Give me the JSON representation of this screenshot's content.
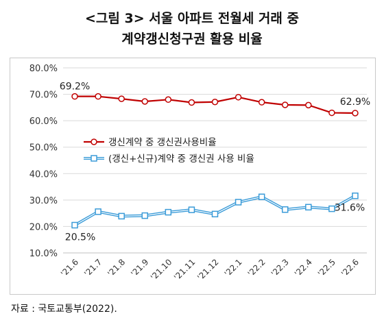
{
  "title": {
    "line1": "<그림 3> 서울 아파트 전월세 거래 중",
    "line2": "계약갱신청구권 활용 비율"
  },
  "source": "자료 : 국토교통부(2022).",
  "chart_data": {
    "type": "line",
    "categories": [
      "'21.6",
      "'21.7",
      "'21.8",
      "'21.9",
      "'21.10",
      "'21.11",
      "'21.12",
      "'22.1",
      "'22.2",
      "'22.3",
      "'22.4",
      "'22.5",
      "'22.6"
    ],
    "ylim": [
      10,
      80
    ],
    "yticks": [
      "10.0%",
      "20.0%",
      "30.0%",
      "40.0%",
      "50.0%",
      "60.0%",
      "70.0%",
      "80.0%"
    ],
    "grid": true,
    "legend_position": "middle-left",
    "series": [
      {
        "name": "갱신계약 중 갱신권사용비율",
        "color": "#c00000",
        "marker": "circle",
        "values": [
          69.2,
          69.2,
          68.3,
          67.3,
          68.0,
          66.9,
          67.1,
          68.9,
          67.0,
          66.0,
          65.9,
          63.0,
          62.9
        ]
      },
      {
        "name": "(갱신+신규)계약 중 갱신권 사용 비율",
        "color": "#3a9bd8",
        "marker": "square",
        "values": [
          20.5,
          25.6,
          23.9,
          24.1,
          25.4,
          26.3,
          24.7,
          29.2,
          31.2,
          26.4,
          27.3,
          26.7,
          31.6
        ]
      }
    ],
    "annotations": [
      "69.2%",
      "62.9%",
      "20.5%",
      "31.6%"
    ]
  }
}
